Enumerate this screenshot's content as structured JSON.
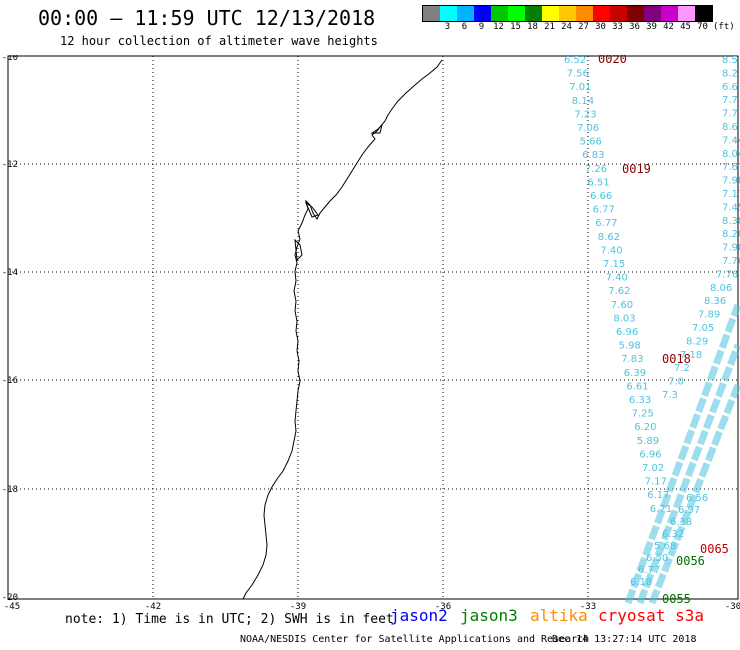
{
  "header": {
    "title": "00:00 — 11:59 UTC 12/13/2018",
    "subtitle": "12 hour collection of altimeter wave heights"
  },
  "legend": {
    "unit": "(ft)",
    "swatches": [
      {
        "label": "",
        "color": "#808080"
      },
      {
        "label": "3",
        "color": "#00ffff"
      },
      {
        "label": "6",
        "color": "#00b4ff"
      },
      {
        "label": "9",
        "color": "#0000ff"
      },
      {
        "label": "12",
        "color": "#00c800"
      },
      {
        "label": "15",
        "color": "#00ff00"
      },
      {
        "label": "18",
        "color": "#008000"
      },
      {
        "label": "21",
        "color": "#ffff00"
      },
      {
        "label": "24",
        "color": "#ffc800"
      },
      {
        "label": "27",
        "color": "#ff8c00"
      },
      {
        "label": "30",
        "color": "#ff0000"
      },
      {
        "label": "33",
        "color": "#c80000"
      },
      {
        "label": "36",
        "color": "#800000"
      },
      {
        "label": "39",
        "color": "#800080"
      },
      {
        "label": "42",
        "color": "#c800c8"
      },
      {
        "label": "45",
        "color": "#ff96ff"
      },
      {
        "label": "70",
        "color": "#000000"
      }
    ]
  },
  "axes": {
    "lon_labels": [
      "-45",
      "-42",
      "-39",
      "-36",
      "-33",
      "-30"
    ],
    "lat_labels": [
      "-10",
      "-12",
      "-14",
      "-16",
      "-18",
      "-20"
    ]
  },
  "track_labels": [
    {
      "text": "0020",
      "color": "#8b0000"
    },
    {
      "text": "0019",
      "color": "#8b0000"
    },
    {
      "text": "0018",
      "color": "#8b0000"
    },
    {
      "text": "0065",
      "color": "#c00000"
    },
    {
      "text": "0056",
      "color": "#007000"
    },
    {
      "text": "0055",
      "color": "#007000"
    }
  ],
  "track1": [
    "6.52",
    "7.56",
    "7.01",
    "8.14",
    "7.23",
    "7.06",
    "5.66",
    "6.83",
    "7.26",
    "6.51",
    "6.66",
    "6.77",
    "6.77",
    "8.62",
    "7.40",
    "7.15",
    "7.40",
    "7.62",
    "7.60",
    "8.03",
    "6.96",
    "5.98",
    "7.83",
    "6.39",
    "6.61",
    "6.33",
    "7.25",
    "6.20",
    "5.89",
    "6.96",
    "7.02",
    "7.17",
    "6.17",
    "6.71"
  ],
  "track2": [
    "8.5",
    "8.2",
    "6.6",
    "7.7",
    "7.7",
    "8.6",
    "7.44",
    "8.04",
    "7.67",
    "7.98",
    "7.17",
    "7.45",
    "8.38",
    "8.20",
    "7.98",
    "7.76",
    "7.76",
    "8.06",
    "8.36",
    "7.89",
    "7.05",
    "8.29",
    "7.18",
    "7.2",
    "7.0",
    "7.3"
  ],
  "track3": [
    "6.56",
    "6.97",
    "6.38",
    "6.32",
    "5.68",
    "6.50",
    "6.77",
    "6.18"
  ],
  "footer": {
    "note": "note: 1) Time is in UTC; 2) SWH is in feet",
    "missions": [
      {
        "name": "jason2",
        "color": "#0000ff"
      },
      {
        "name": "jason3",
        "color": "#008000"
      },
      {
        "name": "altika",
        "color": "#ff8c00"
      },
      {
        "name": "cryosat s3a",
        "color": "#ff0000"
      }
    ],
    "credit": "NOAA/NESDIS Center for Satellite Applications and Research",
    "timestamp": "Dec 14 13:27:14 UTC 2018"
  },
  "colors": {
    "track_text": "#4ec3e0"
  }
}
